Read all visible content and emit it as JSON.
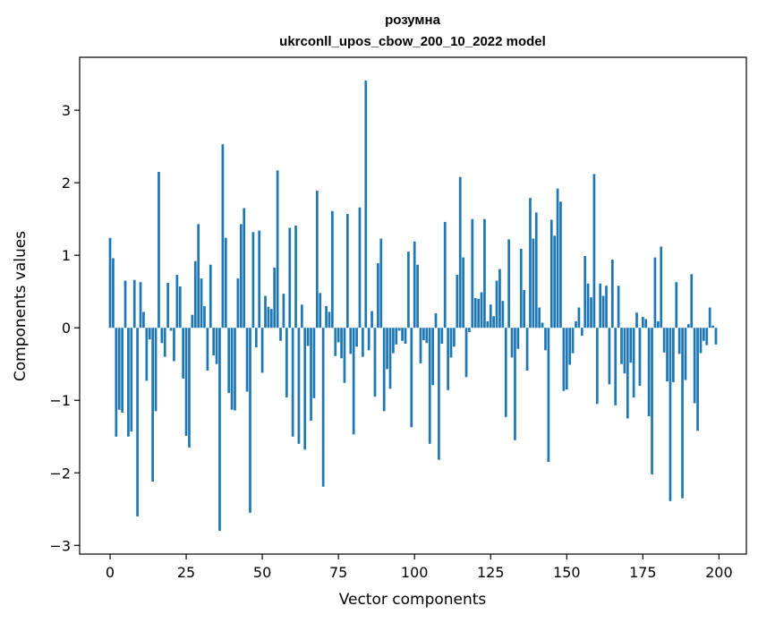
{
  "chart_data": {
    "type": "bar",
    "title_lines": [
      "розумна",
      "ukrconll_upos_cbow_200_10_2022 model"
    ],
    "xlabel": "Vector components",
    "ylabel": "Components values",
    "xlim": [
      -10,
      209
    ],
    "ylim": [
      -3.12,
      3.73
    ],
    "xticks": [
      0,
      25,
      50,
      75,
      100,
      125,
      150,
      175,
      200
    ],
    "yticks": [
      -3,
      -2,
      -1,
      0,
      1,
      2,
      3
    ],
    "ytick_labels": [
      "−3",
      "−2",
      "−1",
      "0",
      "1",
      "2",
      "3"
    ],
    "grid": false,
    "bar_color": "#1f77b4",
    "x": [
      0,
      1,
      2,
      3,
      4,
      5,
      6,
      7,
      8,
      9,
      10,
      11,
      12,
      13,
      14,
      15,
      16,
      17,
      18,
      19,
      20,
      21,
      22,
      23,
      24,
      25,
      26,
      27,
      28,
      29,
      30,
      31,
      32,
      33,
      34,
      35,
      36,
      37,
      38,
      39,
      40,
      41,
      42,
      43,
      44,
      45,
      46,
      47,
      48,
      49,
      50,
      51,
      52,
      53,
      54,
      55,
      56,
      57,
      58,
      59,
      60,
      61,
      62,
      63,
      64,
      65,
      66,
      67,
      68,
      69,
      70,
      71,
      72,
      73,
      74,
      75,
      76,
      77,
      78,
      79,
      80,
      81,
      82,
      83,
      84,
      85,
      86,
      87,
      88,
      89,
      90,
      91,
      92,
      93,
      94,
      95,
      96,
      97,
      98,
      99,
      100,
      101,
      102,
      103,
      104,
      105,
      106,
      107,
      108,
      109,
      110,
      111,
      112,
      113,
      114,
      115,
      116,
      117,
      118,
      119,
      120,
      121,
      122,
      123,
      124,
      125,
      126,
      127,
      128,
      129,
      130,
      131,
      132,
      133,
      134,
      135,
      136,
      137,
      138,
      139,
      140,
      141,
      142,
      143,
      144,
      145,
      146,
      147,
      148,
      149,
      150,
      151,
      152,
      153,
      154,
      155,
      156,
      157,
      158,
      159,
      160,
      161,
      162,
      163,
      164,
      165,
      166,
      167,
      168,
      169,
      170,
      171,
      172,
      173,
      174,
      175,
      176,
      177,
      178,
      179,
      180,
      181,
      182,
      183,
      184,
      185,
      186,
      187,
      188,
      189,
      190,
      191,
      192,
      193,
      194,
      195,
      196,
      197,
      198,
      199
    ],
    "values": [
      1.24,
      0.96,
      -1.5,
      -1.13,
      -1.17,
      0.65,
      -1.5,
      -1.43,
      0.66,
      -2.6,
      0.63,
      0.22,
      -0.73,
      -0.16,
      -2.12,
      -1.15,
      2.15,
      -0.21,
      -0.4,
      0.62,
      -0.04,
      -0.46,
      0.73,
      0.57,
      -0.7,
      -1.49,
      -1.65,
      0.18,
      0.92,
      1.43,
      0.68,
      0.3,
      -0.59,
      0.87,
      -0.38,
      -0.5,
      -2.8,
      2.53,
      1.24,
      -0.9,
      -1.13,
      -1.14,
      0.68,
      1.43,
      1.65,
      -0.88,
      -2.55,
      1.32,
      -0.27,
      1.34,
      -0.62,
      0.44,
      0.29,
      0.26,
      0.83,
      2.17,
      -0.18,
      0.47,
      -0.96,
      1.38,
      -1.5,
      1.41,
      -1.6,
      0.32,
      -1.68,
      -0.25,
      -1.28,
      -0.97,
      1.89,
      0.48,
      -2.19,
      0.3,
      0.22,
      1.61,
      -0.39,
      -0.2,
      -0.42,
      -0.76,
      1.57,
      -0.36,
      -1.47,
      -0.26,
      1.66,
      -0.4,
      3.41,
      -0.31,
      0.23,
      -0.95,
      0.89,
      1.23,
      -1.15,
      -0.57,
      -0.84,
      -0.35,
      -0.23,
      -0.04,
      -0.18,
      -0.22,
      1.05,
      -1.37,
      1.19,
      0.87,
      -0.49,
      -0.17,
      -0.21,
      -1.6,
      -0.79,
      0.2,
      -1.82,
      -0.22,
      1.46,
      -0.86,
      -0.41,
      -0.26,
      0.73,
      2.08,
      0.97,
      -0.68,
      -0.06,
      1.5,
      0.41,
      0.4,
      0.49,
      1.5,
      0.09,
      0.32,
      0.16,
      0.65,
      0.81,
      0.37,
      -1.23,
      1.22,
      -0.41,
      -1.55,
      -0.29,
      1.09,
      0.52,
      -0.59,
      1.79,
      1.23,
      1.59,
      0.28,
      0.07,
      -0.31,
      -1.85,
      1.49,
      1.27,
      1.92,
      1.74,
      -0.87,
      -0.85,
      -0.51,
      -0.35,
      0.09,
      0.28,
      -0.11,
      0.99,
      0.61,
      0.42,
      2.12,
      -1.05,
      0.61,
      0.44,
      0.58,
      -0.78,
      0.94,
      -1.07,
      0.58,
      -0.5,
      -0.63,
      -1.25,
      -0.48,
      -0.96,
      0.21,
      -0.8,
      0.15,
      0.12,
      -1.22,
      -2.02,
      0.97,
      0.09,
      1.12,
      -0.34,
      -0.74,
      -2.39,
      -0.75,
      0.63,
      -0.36,
      -2.35,
      -0.72,
      0.05,
      0.74,
      -1.04,
      -1.42,
      -0.35,
      -0.18,
      -0.24,
      0.28,
      0.03,
      -0.23
    ]
  }
}
